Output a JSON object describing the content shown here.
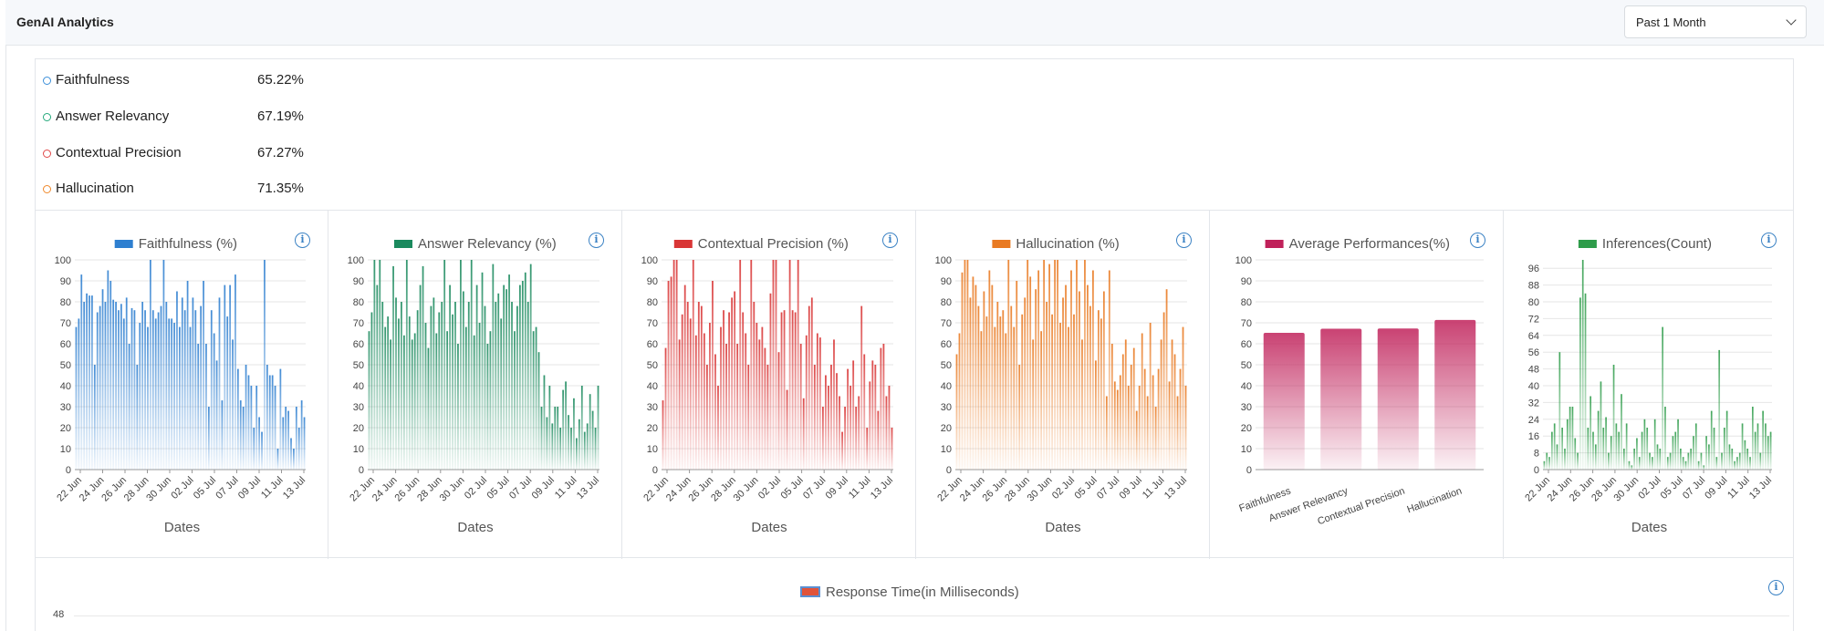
{
  "header": {
    "title": "GenAI Analytics",
    "range_select": "Past 1 Month"
  },
  "metrics": [
    {
      "label": "Faithfulness",
      "value": "65.22%",
      "color": "#3b8fd9"
    },
    {
      "label": "Answer Relevancy",
      "value": "67.19%",
      "color": "#22a87a"
    },
    {
      "label": "Contextual Precision",
      "value": "67.27%",
      "color": "#e04848"
    },
    {
      "label": "Hallucination",
      "value": "71.35%",
      "color": "#f0882a"
    }
  ],
  "info_icon": "i",
  "chart_data": [
    {
      "type": "bar",
      "title": "Faithfulness (%)",
      "xlabel": "Dates",
      "ylim": [
        0,
        100
      ],
      "legend": "top",
      "color": "#2e7fd0",
      "yticks": [
        "0",
        "10",
        "20",
        "30",
        "40",
        "50",
        "60",
        "70",
        "80",
        "90",
        "100"
      ],
      "xticks": [
        "22 Jun",
        "24 Jun",
        "26 Jun",
        "28 Jun",
        "30 Jun",
        "02 Jul",
        "05 Jul",
        "07 Jul",
        "09 Jul",
        "11 Jul",
        "13 Jul"
      ],
      "values": [
        68,
        72,
        93,
        80,
        84,
        83,
        83,
        50,
        75,
        78,
        86,
        80,
        95,
        90,
        81,
        80,
        76,
        79,
        72,
        82,
        60,
        77,
        76,
        50,
        70,
        80,
        76,
        68,
        100,
        76,
        72,
        75,
        78,
        100,
        80,
        72,
        72,
        70,
        85,
        68,
        82,
        76,
        90,
        68,
        82,
        76,
        60,
        78,
        90,
        60,
        30,
        76,
        65,
        52,
        82,
        33,
        88,
        73,
        88,
        62,
        93,
        48,
        33,
        30,
        50,
        45,
        40,
        20,
        40,
        25,
        18,
        100,
        50,
        45,
        45,
        40,
        10,
        48,
        25,
        30,
        28,
        15,
        10,
        30,
        20,
        33,
        25
      ]
    },
    {
      "type": "bar",
      "title": "Answer Relevancy (%)",
      "xlabel": "Dates",
      "ylim": [
        0,
        100
      ],
      "legend": "top",
      "color": "#1b8a5e",
      "yticks": [
        "0",
        "10",
        "20",
        "30",
        "40",
        "50",
        "60",
        "70",
        "80",
        "90",
        "100"
      ],
      "xticks": [
        "22 Jun",
        "24 Jun",
        "26 Jun",
        "28 Jun",
        "30 Jun",
        "02 Jul",
        "05 Jul",
        "07 Jul",
        "09 Jul",
        "11 Jul",
        "13 Jul"
      ],
      "values": [
        66,
        75,
        100,
        88,
        100,
        80,
        68,
        73,
        62,
        97,
        82,
        72,
        80,
        64,
        100,
        73,
        62,
        65,
        76,
        88,
        97,
        70,
        58,
        78,
        82,
        65,
        75,
        80,
        100,
        66,
        88,
        74,
        80,
        60,
        100,
        85,
        68,
        80,
        100,
        64,
        88,
        70,
        94,
        78,
        60,
        66,
        98,
        80,
        84,
        72,
        88,
        86,
        93,
        80,
        66,
        78,
        88,
        90,
        94,
        80,
        98,
        66,
        68,
        56,
        30,
        45,
        25,
        40,
        22,
        30,
        30,
        20,
        38,
        42,
        26,
        20,
        34,
        15,
        24,
        40,
        18,
        22,
        36,
        28,
        20,
        40
      ]
    },
    {
      "type": "bar",
      "title": "Contextual Precision (%)",
      "xlabel": "Dates",
      "ylim": [
        0,
        100
      ],
      "legend": "top",
      "color": "#d93636",
      "yticks": [
        "0",
        "10",
        "20",
        "30",
        "40",
        "50",
        "60",
        "70",
        "80",
        "90",
        "100"
      ],
      "xticks": [
        "22 Jun",
        "24 Jun",
        "26 Jun",
        "28 Jun",
        "30 Jun",
        "02 Jul",
        "05 Jul",
        "07 Jul",
        "09 Jul",
        "11 Jul",
        "13 Jul"
      ],
      "values": [
        33,
        58,
        90,
        92,
        100,
        100,
        62,
        74,
        88,
        80,
        72,
        100,
        64,
        80,
        78,
        65,
        50,
        70,
        90,
        55,
        40,
        68,
        76,
        60,
        75,
        82,
        85,
        60,
        100,
        75,
        65,
        50,
        100,
        80,
        70,
        62,
        68,
        58,
        50,
        84,
        100,
        100,
        56,
        75,
        76,
        38,
        100,
        76,
        75,
        100,
        60,
        34,
        64,
        78,
        82,
        50,
        65,
        63,
        30,
        45,
        40,
        50,
        62,
        46,
        35,
        18,
        30,
        48,
        40,
        52,
        30,
        35,
        78,
        55,
        20,
        42,
        52,
        50,
        28,
        58,
        60,
        35,
        40,
        20
      ]
    },
    {
      "type": "bar",
      "title": "Hallucination (%)",
      "xlabel": "Dates",
      "ylim": [
        0,
        100
      ],
      "legend": "top",
      "color": "#e97a22",
      "yticks": [
        "0",
        "10",
        "20",
        "30",
        "40",
        "50",
        "60",
        "70",
        "80",
        "90",
        "100"
      ],
      "xticks": [
        "22 Jun",
        "24 Jun",
        "26 Jun",
        "28 Jun",
        "30 Jun",
        "02 Jul",
        "05 Jul",
        "07 Jul",
        "09 Jul",
        "11 Jul",
        "13 Jul"
      ],
      "values": [
        55,
        65,
        94,
        100,
        100,
        82,
        92,
        88,
        78,
        66,
        85,
        73,
        95,
        88,
        68,
        80,
        73,
        76,
        65,
        100,
        78,
        68,
        90,
        50,
        74,
        82,
        100,
        92,
        62,
        86,
        95,
        66,
        100,
        80,
        98,
        74,
        100,
        100,
        70,
        82,
        88,
        68,
        95,
        74,
        100,
        85,
        62,
        100,
        88,
        78,
        95,
        52,
        76,
        72,
        85,
        35,
        95,
        60,
        42,
        38,
        45,
        55,
        62,
        40,
        50,
        58,
        28,
        40,
        65,
        48,
        35,
        70,
        45,
        30,
        48,
        62,
        75,
        86,
        42,
        62,
        55,
        35,
        48,
        68,
        40
      ]
    },
    {
      "type": "bar",
      "title": "Average Performances(%)",
      "ylim": [
        0,
        100
      ],
      "legend": "top",
      "color": "#c0215a",
      "yticks": [
        "0",
        "10",
        "20",
        "30",
        "40",
        "50",
        "60",
        "70",
        "80",
        "90",
        "100"
      ],
      "categories": [
        "Faithfulness",
        "Answer Relevancy",
        "Contextual Precision",
        "Hallucination"
      ],
      "values": [
        65.22,
        67.19,
        67.27,
        71.35
      ]
    },
    {
      "type": "bar",
      "title": "Inferences(Count)",
      "xlabel": "Dates",
      "ylim": [
        0,
        100
      ],
      "legend": "top",
      "color": "#2e9c4a",
      "yticks": [
        "0",
        "8",
        "16",
        "24",
        "32",
        "40",
        "48",
        "56",
        "64",
        "72",
        "80",
        "88",
        "96"
      ],
      "xticks": [
        "22 Jun",
        "24 Jun",
        "26 Jun",
        "28 Jun",
        "30 Jun",
        "02 Jul",
        "05 Jul",
        "07 Jul",
        "09 Jul",
        "11 Jul",
        "13 Jul"
      ],
      "values": [
        4,
        8,
        6,
        18,
        22,
        12,
        56,
        20,
        10,
        24,
        30,
        30,
        15,
        8,
        82,
        100,
        84,
        20,
        35,
        18,
        12,
        28,
        42,
        20,
        25,
        8,
        16,
        50,
        22,
        18,
        36,
        10,
        22,
        4,
        2,
        10,
        15,
        6,
        18,
        24,
        20,
        8,
        6,
        24,
        12,
        10,
        68,
        30,
        6,
        8,
        16,
        18,
        24,
        10,
        6,
        4,
        8,
        10,
        16,
        22,
        4,
        8,
        2,
        16,
        12,
        28,
        20,
        6,
        57,
        8,
        20,
        28,
        12,
        10,
        4,
        6,
        8,
        22,
        14,
        10,
        6,
        30,
        18,
        22,
        8,
        28,
        22,
        16,
        18
      ]
    }
  ],
  "response_time": {
    "legend": "Response Time(in Milliseconds)",
    "first_tick": "48"
  }
}
